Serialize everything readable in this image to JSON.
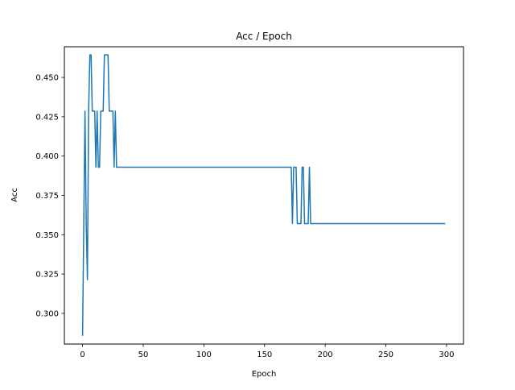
{
  "chart_data": {
    "type": "line",
    "title": "Acc / Epoch",
    "xlabel": "Epoch",
    "ylabel": "Acc",
    "xlim": [
      -15,
      314
    ],
    "ylim": [
      0.2805,
      0.4695
    ],
    "xticks": [
      0,
      50,
      100,
      150,
      200,
      250,
      300
    ],
    "yticks": [
      0.3,
      0.325,
      0.35,
      0.375,
      0.4,
      0.425,
      0.45
    ],
    "ytick_labels": [
      "0.300",
      "0.325",
      "0.350",
      "0.375",
      "0.400",
      "0.425",
      "0.450"
    ],
    "grid": false,
    "series": [
      {
        "color": "#1f77b4",
        "x": [
          0,
          1,
          2,
          3,
          4,
          5,
          6,
          7,
          8,
          9,
          10,
          11,
          12,
          13,
          14,
          15,
          16,
          17,
          18,
          19,
          20,
          21,
          22,
          23,
          24,
          25,
          26,
          27,
          28,
          29,
          172,
          173,
          174,
          175,
          176,
          177,
          178,
          179,
          180,
          181,
          182,
          183,
          184,
          185,
          186,
          187,
          188,
          299
        ],
        "y": [
          0.2857,
          0.3571,
          0.4286,
          0.3571,
          0.3214,
          0.4286,
          0.4643,
          0.4643,
          0.4286,
          0.4286,
          0.4286,
          0.3929,
          0.4286,
          0.3929,
          0.3929,
          0.4286,
          0.4286,
          0.4286,
          0.4643,
          0.4643,
          0.4643,
          0.4643,
          0.4286,
          0.4286,
          0.4286,
          0.4286,
          0.3929,
          0.4286,
          0.3929,
          0.3929,
          0.3929,
          0.3571,
          0.3929,
          0.3929,
          0.3929,
          0.3571,
          0.3571,
          0.3571,
          0.3571,
          0.3929,
          0.3929,
          0.3571,
          0.3571,
          0.3571,
          0.3571,
          0.3929,
          0.3571,
          0.3571
        ]
      }
    ]
  }
}
